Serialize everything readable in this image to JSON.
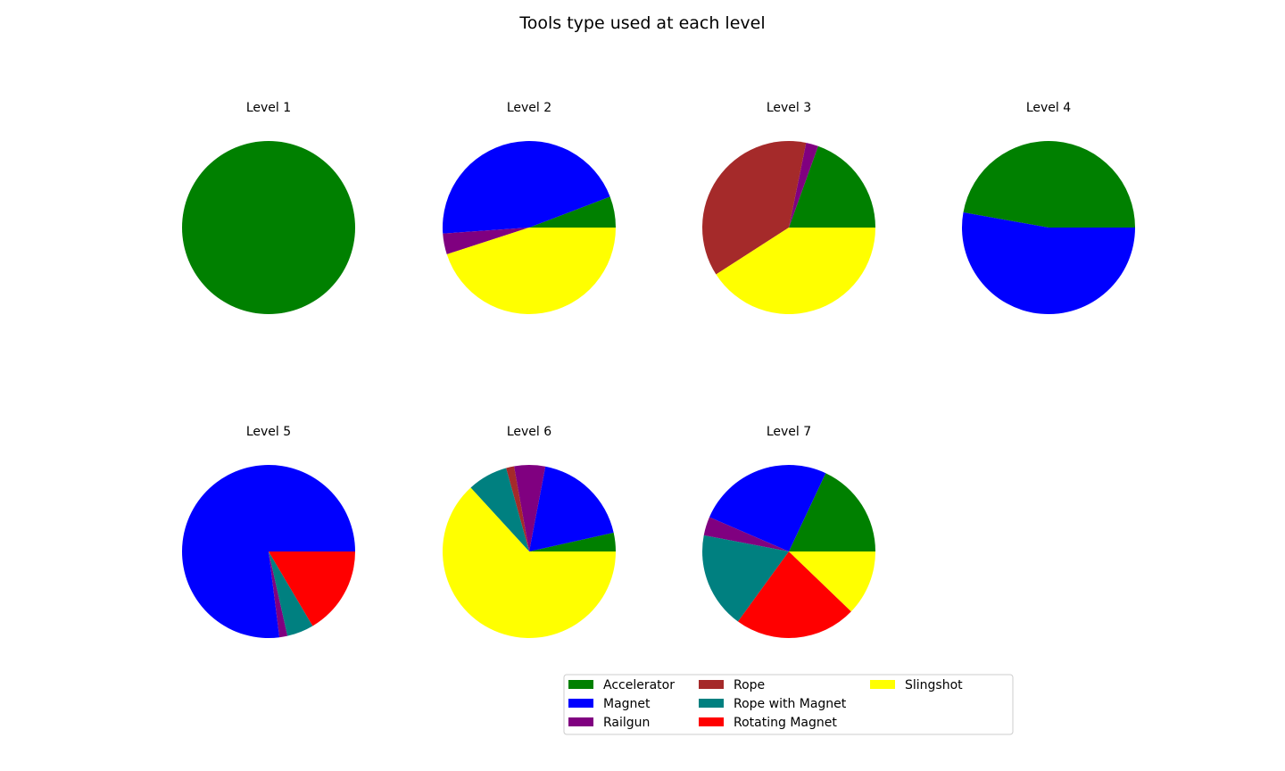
{
  "chart_data": {
    "type": "pie",
    "title": "Tools type used at each level",
    "legend": {
      "placement": "bottom-center",
      "columns": 3,
      "entries": [
        {
          "name": "Accelerator",
          "color": "#008000"
        },
        {
          "name": "Magnet",
          "color": "#0000ff"
        },
        {
          "name": "Railgun",
          "color": "#800080"
        },
        {
          "name": "Rope",
          "color": "#a52a2a"
        },
        {
          "name": "Rope with Magnet",
          "color": "#008080"
        },
        {
          "name": "Rotating Magnet",
          "color": "#ff0000"
        },
        {
          "name": "Slingshot",
          "color": "#ffff00"
        }
      ]
    },
    "pies": [
      {
        "title": "Level 1",
        "slices": [
          {
            "label": "Accelerator",
            "value": 100
          }
        ]
      },
      {
        "title": "Level 2",
        "slices": [
          {
            "label": "Accelerator",
            "value": 5.8
          },
          {
            "label": "Magnet",
            "value": 45.3
          },
          {
            "label": "Railgun",
            "value": 3.9
          },
          {
            "label": "Slingshot",
            "value": 45.0
          }
        ]
      },
      {
        "title": "Level 3",
        "slices": [
          {
            "label": "Accelerator",
            "value": 19.5
          },
          {
            "label": "Railgun",
            "value": 2.3
          },
          {
            "label": "Rope",
            "value": 37.3
          },
          {
            "label": "Slingshot",
            "value": 40.9
          }
        ]
      },
      {
        "title": "Level 4",
        "slices": [
          {
            "label": "Accelerator",
            "value": 47.2
          },
          {
            "label": "Magnet",
            "value": 52.8
          }
        ]
      },
      {
        "title": "Level 5",
        "slices": [
          {
            "label": "Magnet",
            "value": 77.0
          },
          {
            "label": "Railgun",
            "value": 1.5
          },
          {
            "label": "Rope with Magnet",
            "value": 5.0
          },
          {
            "label": "Rotating Magnet",
            "value": 16.5
          }
        ]
      },
      {
        "title": "Level 6",
        "slices": [
          {
            "label": "Accelerator",
            "value": 3.5
          },
          {
            "label": "Magnet",
            "value": 18.5
          },
          {
            "label": "Railgun",
            "value": 5.8
          },
          {
            "label": "Rope",
            "value": 1.5
          },
          {
            "label": "Rope with Magnet",
            "value": 7.5
          },
          {
            "label": "Slingshot",
            "value": 63.2
          }
        ]
      },
      {
        "title": "Level 7",
        "slices": [
          {
            "label": "Accelerator",
            "value": 18.0
          },
          {
            "label": "Magnet",
            "value": 25.5
          },
          {
            "label": "Railgun",
            "value": 3.5
          },
          {
            "label": "Rope with Magnet",
            "value": 18.0
          },
          {
            "label": "Rotating Magnet",
            "value": 22.8
          },
          {
            "label": "Slingshot",
            "value": 12.2
          }
        ]
      }
    ]
  }
}
